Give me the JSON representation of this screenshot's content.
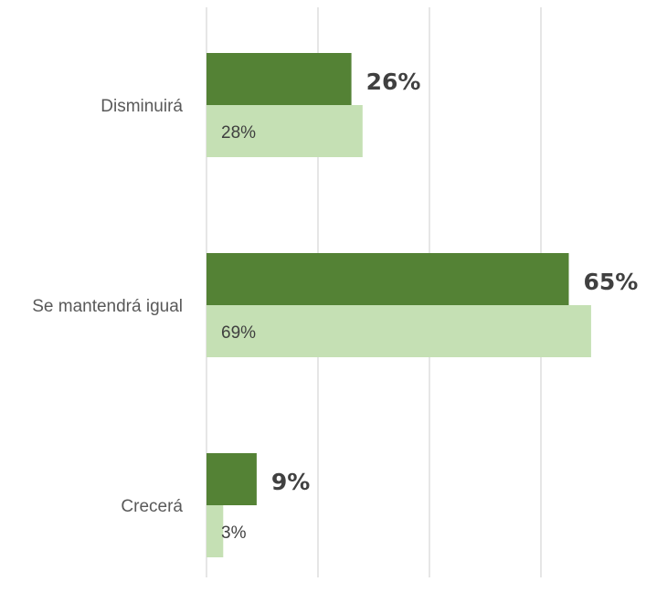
{
  "chart_data": {
    "type": "bar",
    "orientation": "horizontal",
    "categories": [
      "Disminuirá",
      "Se mantendrá igual",
      "Crecerá"
    ],
    "series": [
      {
        "values": [
          26,
          65,
          9
        ],
        "labels": [
          "26%",
          "65%",
          "9%"
        ],
        "color": "#548235"
      },
      {
        "values": [
          28,
          69,
          3
        ],
        "labels": [
          "28%",
          "69%",
          "3%"
        ],
        "color": "#c5e0b4"
      }
    ],
    "grid": true,
    "legend": "none",
    "xlim": [
      0,
      80
    ]
  }
}
